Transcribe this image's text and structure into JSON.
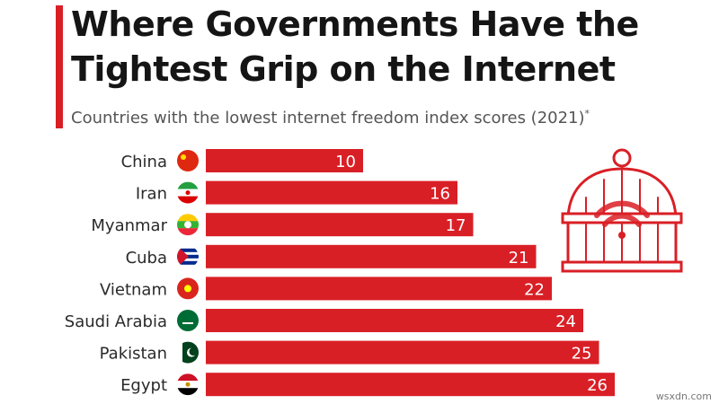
{
  "header": {
    "title_line1": "Where Governments Have the",
    "title_line2": "Tightest Grip on the Internet",
    "subtitle": "Countries with the lowest internet freedom index scores (2021)",
    "subtitle_mark": "*"
  },
  "chart_data": {
    "type": "bar",
    "orientation": "horizontal",
    "title": "Where Governments Have the Tightest Grip on the Internet",
    "subtitle": "Countries with the lowest internet freedom index scores (2021)*",
    "categories": [
      "China",
      "Iran",
      "Myanmar",
      "Cuba",
      "Vietnam",
      "Saudi Arabia",
      "Pakistan",
      "Egypt"
    ],
    "values": [
      10,
      16,
      17,
      21,
      22,
      24,
      25,
      26
    ],
    "xlabel": "",
    "ylabel": "",
    "xlim": [
      0,
      26
    ],
    "bar_color": "#d91f26",
    "label_color": "#ffffff",
    "grid": false,
    "legend": "none"
  },
  "watermark": "wsxdn.com",
  "colors": {
    "accent": "#d91f26",
    "title": "#151515",
    "subtitle": "#555555"
  }
}
